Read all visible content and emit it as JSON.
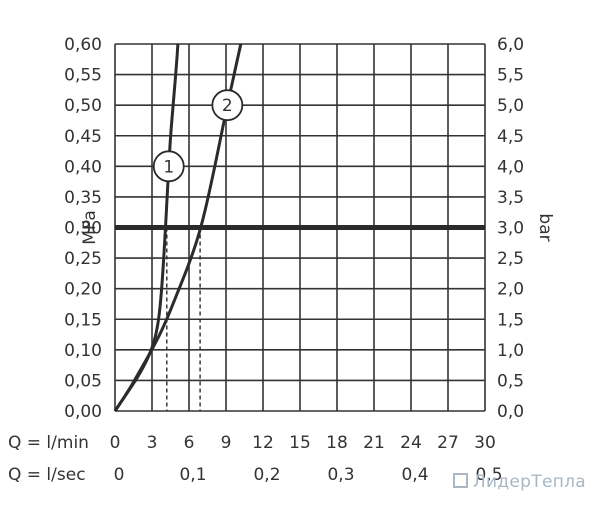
{
  "chart_data": {
    "type": "line",
    "left_axis": {
      "label": "MPa",
      "range": [
        0,
        0.6
      ],
      "ticks": [
        "0,00",
        "0,05",
        "0,10",
        "0,15",
        "0,20",
        "0,25",
        "0,30",
        "0,35",
        "0,40",
        "0,45",
        "0,50",
        "0,55",
        "0,60"
      ]
    },
    "right_axis": {
      "label": "bar",
      "range": [
        0,
        6
      ],
      "ticks": [
        "0,0",
        "0,5",
        "1,0",
        "1,5",
        "2,0",
        "2,5",
        "3,0",
        "3,5",
        "4,0",
        "4,5",
        "5,0",
        "5,5",
        "6,0"
      ]
    },
    "x_axis_lmin": {
      "label": "Q = l/min",
      "range": [
        0,
        30
      ],
      "ticks": [
        {
          "value": 0,
          "label": "0"
        },
        {
          "value": 3,
          "label": "3"
        },
        {
          "value": 6,
          "label": "6"
        },
        {
          "value": 9,
          "label": "9"
        },
        {
          "value": 12,
          "label": "12"
        },
        {
          "value": 15,
          "label": "15"
        },
        {
          "value": 18,
          "label": "18"
        },
        {
          "value": 21,
          "label": "21"
        },
        {
          "value": 24,
          "label": "24"
        },
        {
          "value": 27,
          "label": "27"
        },
        {
          "value": 30,
          "label": "30"
        }
      ]
    },
    "x_axis_lsec": {
      "label": "Q = l/sec",
      "ticks": [
        {
          "value": 0,
          "label": "0"
        },
        {
          "value": 0.1,
          "label": "0,1"
        },
        {
          "value": 0.2,
          "label": "0,2"
        },
        {
          "value": 0.3,
          "label": "0,3"
        },
        {
          "value": 0.4,
          "label": "0,4"
        },
        {
          "value": 0.5,
          "label": "0,5"
        }
      ]
    },
    "grid": true,
    "reference_line": {
      "y": 0.3
    },
    "series": [
      {
        "callout": "1",
        "x": [
          0,
          1,
          2,
          3,
          3.5,
          3.8,
          4.1,
          4.3,
          4.5,
          4.8,
          5.0,
          5.1
        ],
        "y": [
          0,
          0.03,
          0.06,
          0.1,
          0.14,
          0.2,
          0.3,
          0.38,
          0.45,
          0.52,
          0.57,
          0.6
        ]
      },
      {
        "callout": "2",
        "x": [
          0,
          1,
          2,
          3,
          4,
          5,
          6,
          7,
          8,
          9,
          10.2
        ],
        "y": [
          0,
          0.03,
          0.065,
          0.1,
          0.14,
          0.19,
          0.24,
          0.3,
          0.39,
          0.49,
          0.6
        ]
      }
    ],
    "drop_lines": [
      {
        "series": "1",
        "x": 4.2,
        "y": 0.3
      },
      {
        "series": "2",
        "x": 6.9,
        "y": 0.3
      }
    ],
    "colors": {
      "grid": "#333333",
      "series": "#2b2b2b",
      "reference": "#2b2b2b",
      "text": "#333333"
    }
  },
  "watermark": {
    "text": "ЛидерТепла"
  }
}
